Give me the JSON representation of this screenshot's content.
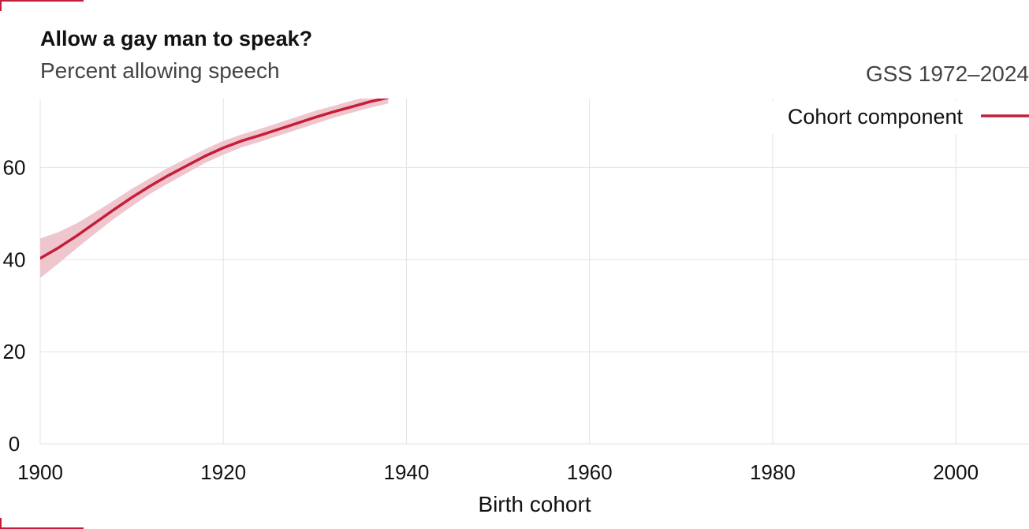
{
  "header": {
    "title": "Allow a gay man to speak?",
    "subtitle": "Percent allowing speech",
    "source": "GSS 1972–2024"
  },
  "colors": {
    "accent": "#c41e3a",
    "band": "#efc6cd",
    "grid": "#e3e3e3",
    "text": "#111111"
  },
  "chart_data": {
    "type": "line",
    "xlabel": "Birth cohort",
    "ylabel": "",
    "xlim": [
      1900,
      2008
    ],
    "ylim": [
      0,
      75
    ],
    "x_ticks": [
      1900,
      1920,
      1940,
      1960,
      1980,
      2000
    ],
    "y_ticks": [
      0,
      20,
      40,
      60
    ],
    "grid": true,
    "legend_position": "top-right",
    "series": [
      {
        "name": "Cohort component",
        "x": [
          1900,
          1902,
          1904,
          1906,
          1908,
          1910,
          1912,
          1914,
          1916,
          1918,
          1920,
          1922,
          1924,
          1926,
          1928,
          1930,
          1932,
          1934,
          1936,
          1938
        ],
        "y": [
          40.3,
          42.6,
          45.2,
          48.0,
          50.8,
          53.5,
          56.0,
          58.3,
          60.4,
          62.5,
          64.3,
          65.8,
          67.0,
          68.3,
          69.6,
          70.9,
          72.1,
          73.2,
          74.3,
          75.2
        ],
        "lower": [
          36.0,
          39.2,
          42.5,
          45.7,
          48.8,
          51.6,
          54.3,
          56.6,
          58.8,
          61.0,
          62.8,
          64.4,
          65.6,
          66.9,
          68.2,
          69.5,
          70.8,
          71.9,
          73.0,
          73.9
        ],
        "upper": [
          44.6,
          46.0,
          47.9,
          50.3,
          52.8,
          55.4,
          57.7,
          60.0,
          62.0,
          64.0,
          65.8,
          67.2,
          68.4,
          69.7,
          71.0,
          72.3,
          73.4,
          74.5,
          75.6,
          76.5
        ]
      }
    ]
  }
}
